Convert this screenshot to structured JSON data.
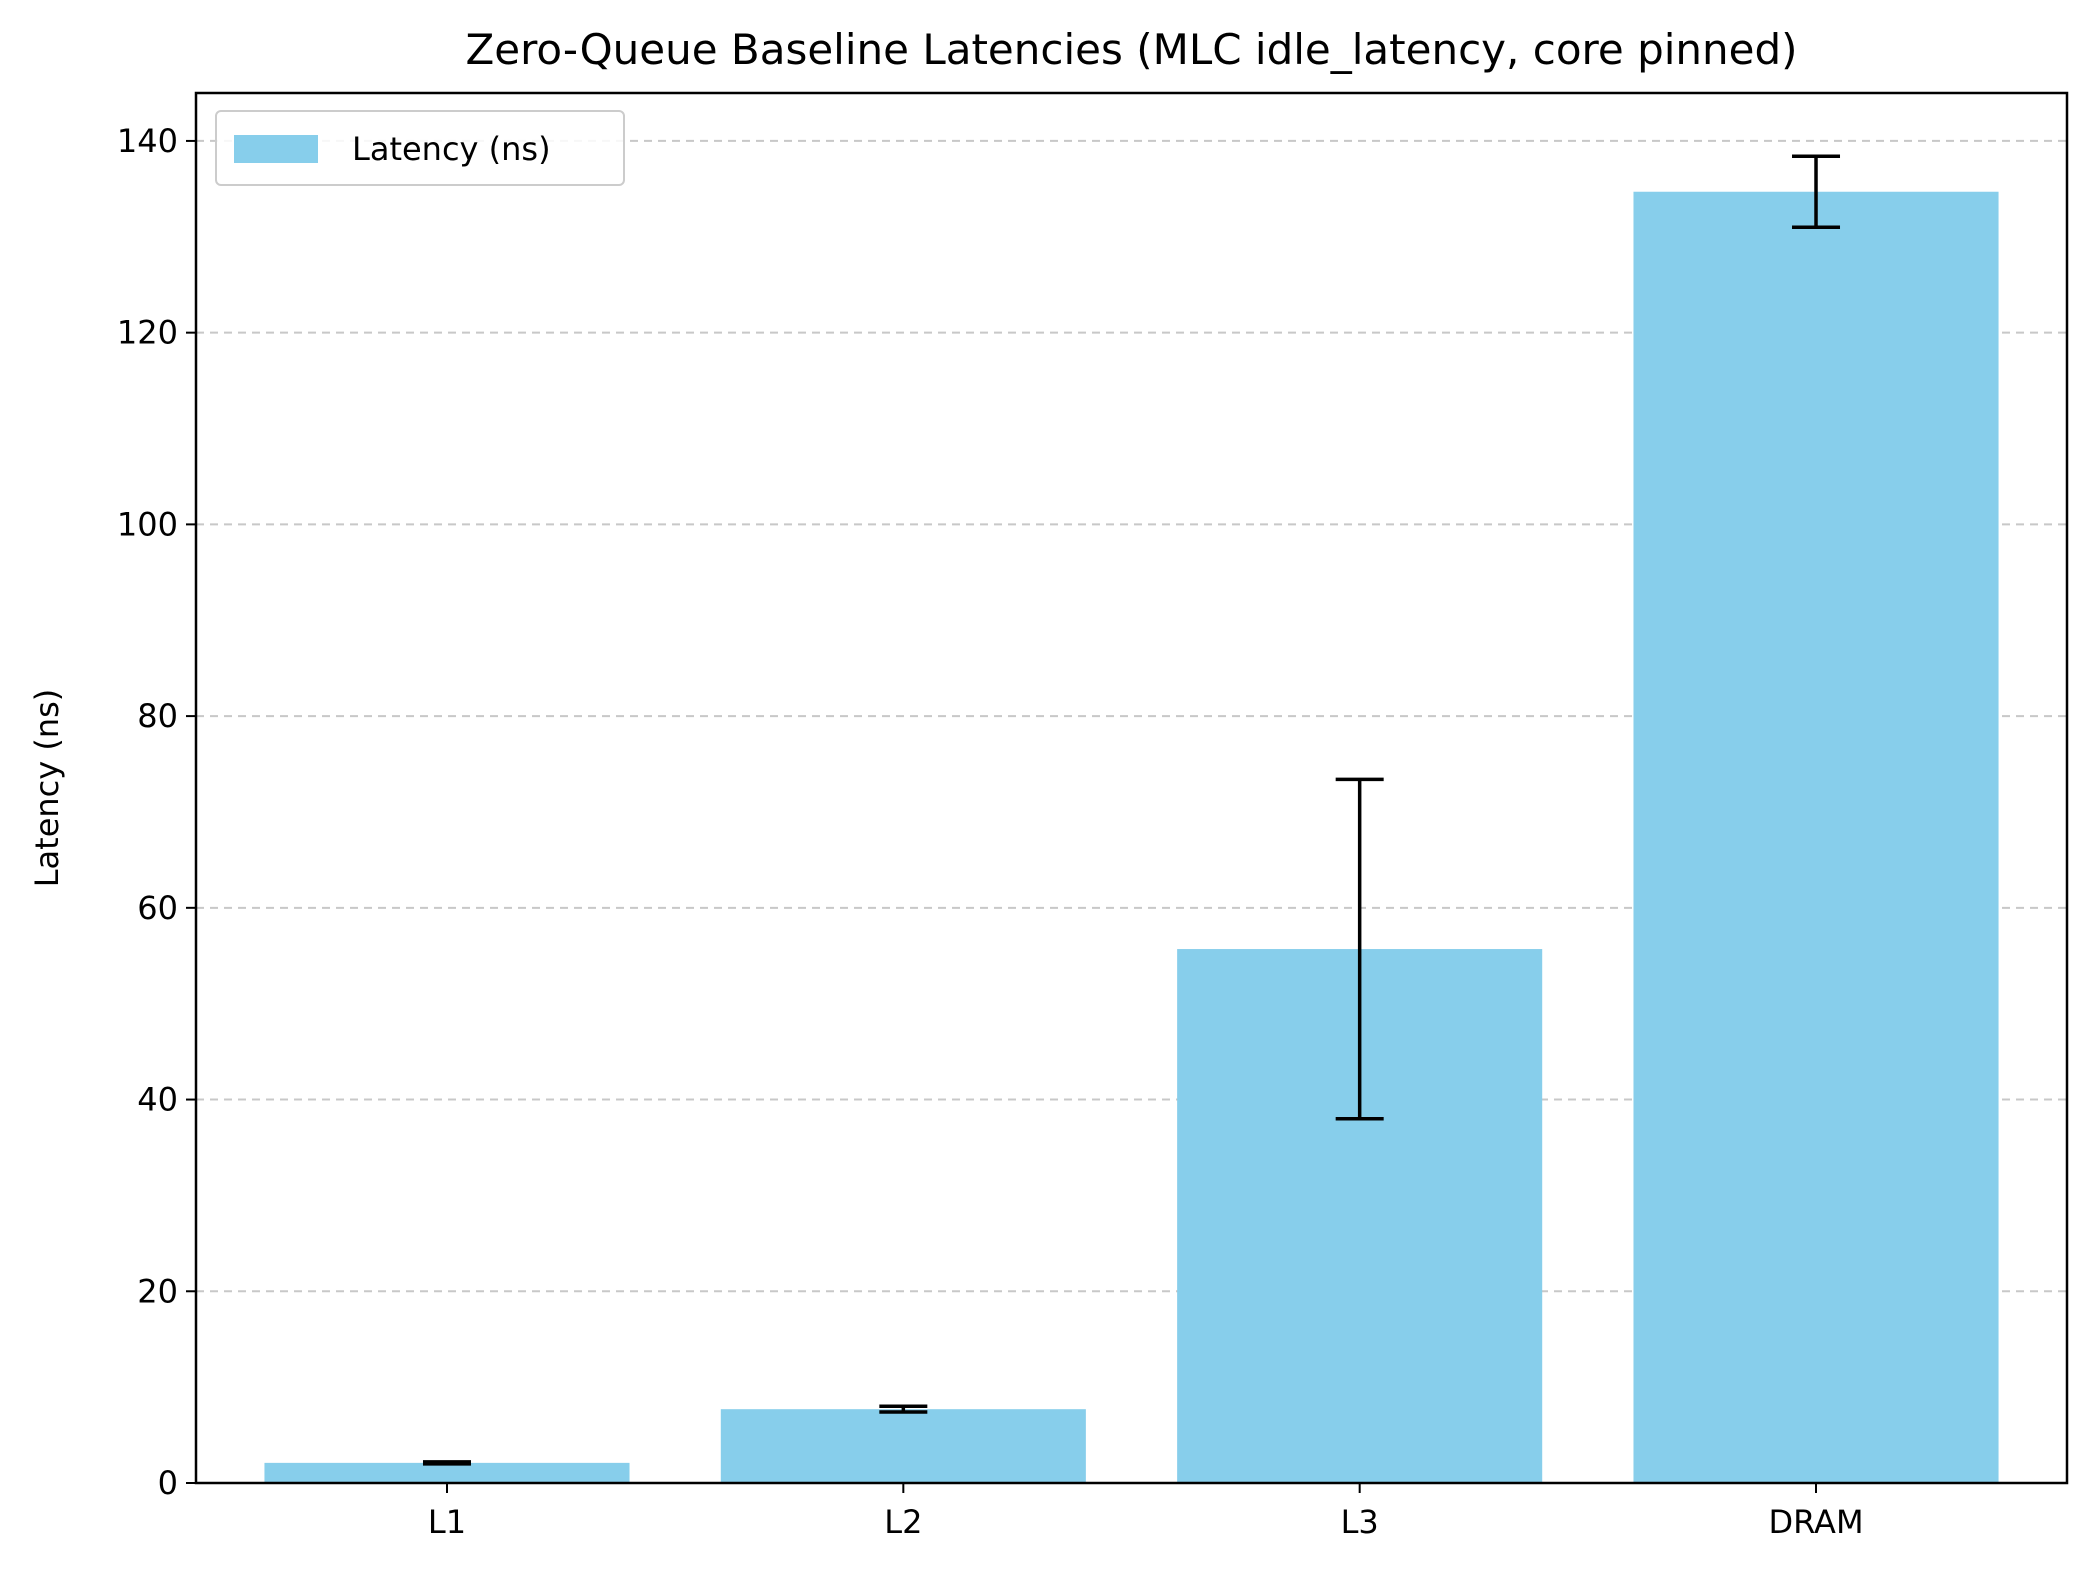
{
  "chart_data": {
    "type": "bar",
    "title": "Zero-Queue Baseline Latencies (MLC idle_latency, core pinned)",
    "xlabel": "",
    "ylabel": "Latency (ns)",
    "categories": [
      "L1",
      "L2",
      "L3",
      "DRAM"
    ],
    "series": [
      {
        "name": "Latency (ns)",
        "values": [
          2.1,
          7.7,
          55.7,
          134.7
        ],
        "error": [
          0.1,
          0.3,
          17.7,
          3.7
        ],
        "color": "#87ceeb"
      }
    ],
    "ylim": [
      0,
      145
    ],
    "yticks": [
      0,
      20,
      40,
      60,
      80,
      100,
      120,
      140
    ],
    "grid": "y-dashed",
    "legend_position": "top-left",
    "error_bar_color": "#000000",
    "grid_color": "#c8c8c8"
  }
}
